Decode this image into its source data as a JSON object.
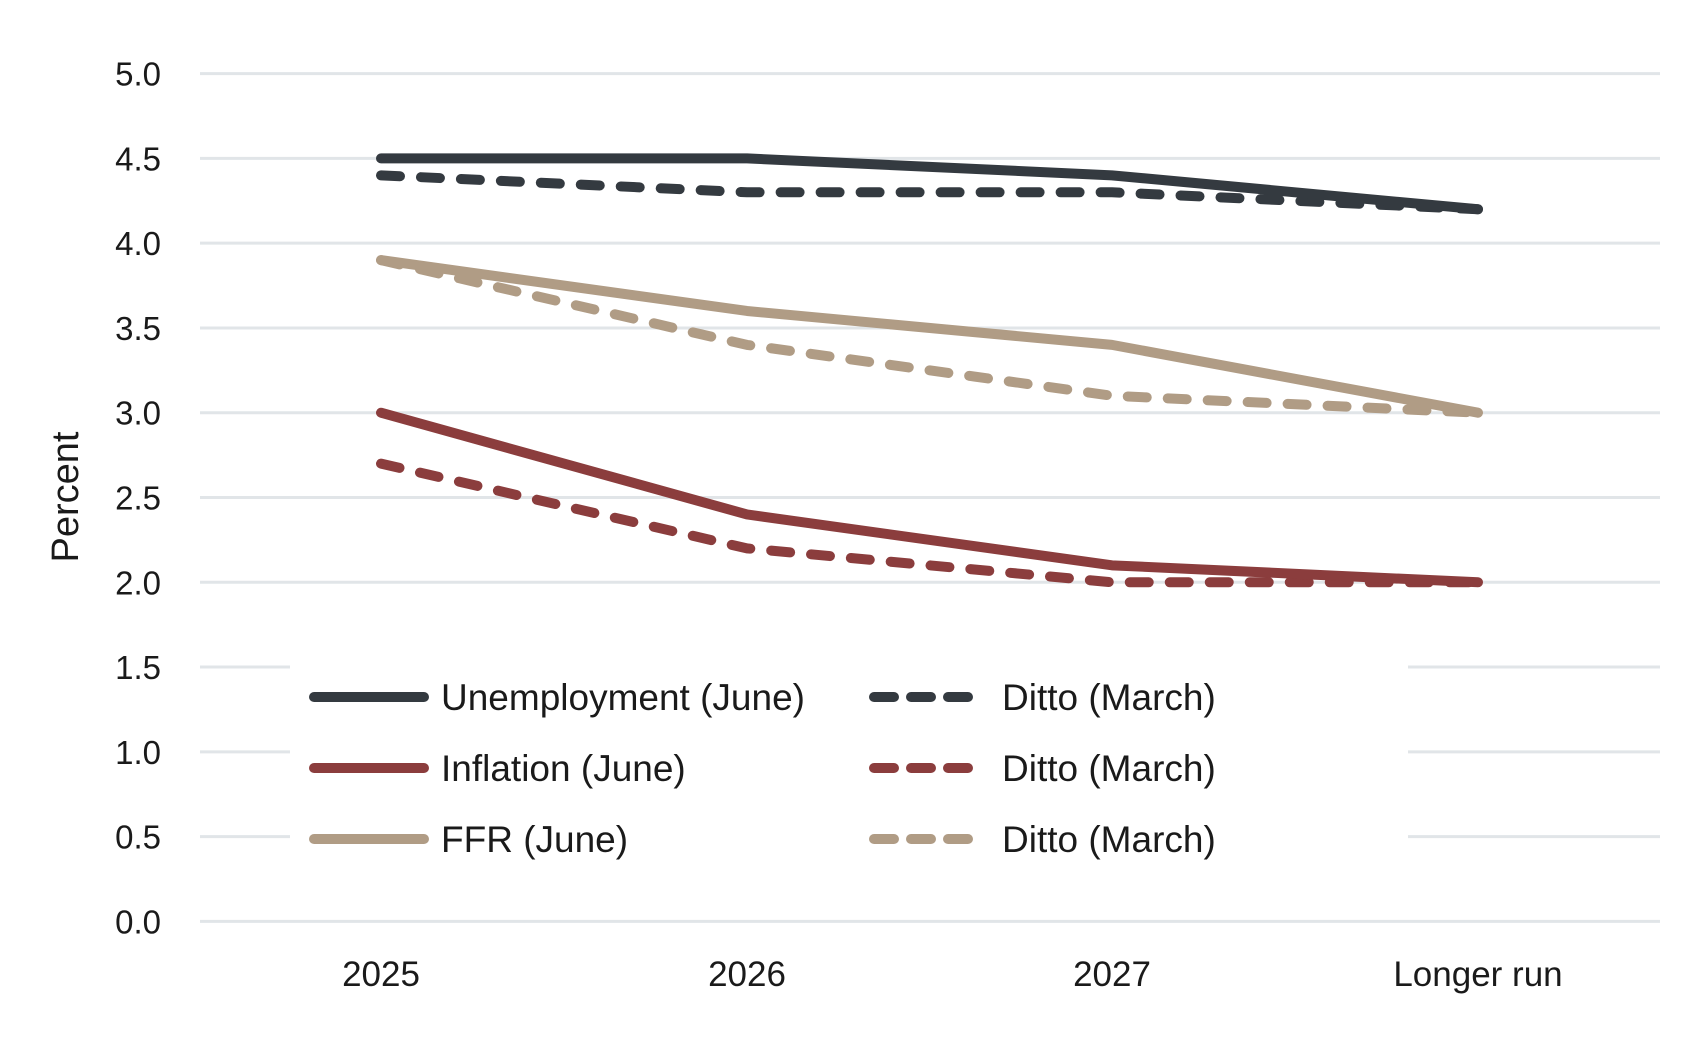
{
  "chart_data": {
    "type": "line",
    "title": "",
    "xlabel": "",
    "ylabel": "Percent",
    "ylim": [
      0,
      5
    ],
    "yticks": [
      "0.0",
      "0.5",
      "1.0",
      "1.5",
      "2.0",
      "2.5",
      "3.0",
      "3.5",
      "4.0",
      "4.5",
      "5.0"
    ],
    "categories": [
      "2025",
      "2026",
      "2027",
      "Longer run"
    ],
    "grid": true,
    "legend_position": "lower-left inside",
    "series": [
      {
        "name": "Unemployment (June)",
        "color": "#343a40",
        "dash": "solid",
        "values": [
          4.5,
          4.5,
          4.4,
          4.2
        ]
      },
      {
        "name": "Ditto (March)",
        "color": "#343a40",
        "dash": "dashed",
        "values": [
          4.4,
          4.3,
          4.3,
          4.2
        ]
      },
      {
        "name": "Inflation (June)",
        "color": "#8b3d3d",
        "dash": "solid",
        "values": [
          3.0,
          2.4,
          2.1,
          2.0
        ]
      },
      {
        "name": "Ditto (March)",
        "color": "#8b3d3d",
        "dash": "dashed",
        "values": [
          2.7,
          2.2,
          2.0,
          2.0
        ]
      },
      {
        "name": "FFR (June)",
        "color": "#b09c85",
        "dash": "solid",
        "values": [
          3.9,
          3.6,
          3.4,
          3.0
        ]
      },
      {
        "name": "Ditto (March)",
        "color": "#b09c85",
        "dash": "dashed",
        "values": [
          3.9,
          3.4,
          3.1,
          3.0
        ]
      }
    ]
  },
  "colors": {
    "grid": "#e1e5e8",
    "text": "#1a1a1a"
  },
  "legend": {
    "rows": [
      {
        "solid_label": "Unemployment (June)",
        "dashed_label": "Ditto (March)",
        "color": "#343a40"
      },
      {
        "solid_label": "Inflation (June)",
        "dashed_label": "Ditto (March)",
        "color": "#8b3d3d"
      },
      {
        "solid_label": "FFR (June)",
        "dashed_label": "Ditto (March)",
        "color": "#b09c85"
      }
    ]
  }
}
